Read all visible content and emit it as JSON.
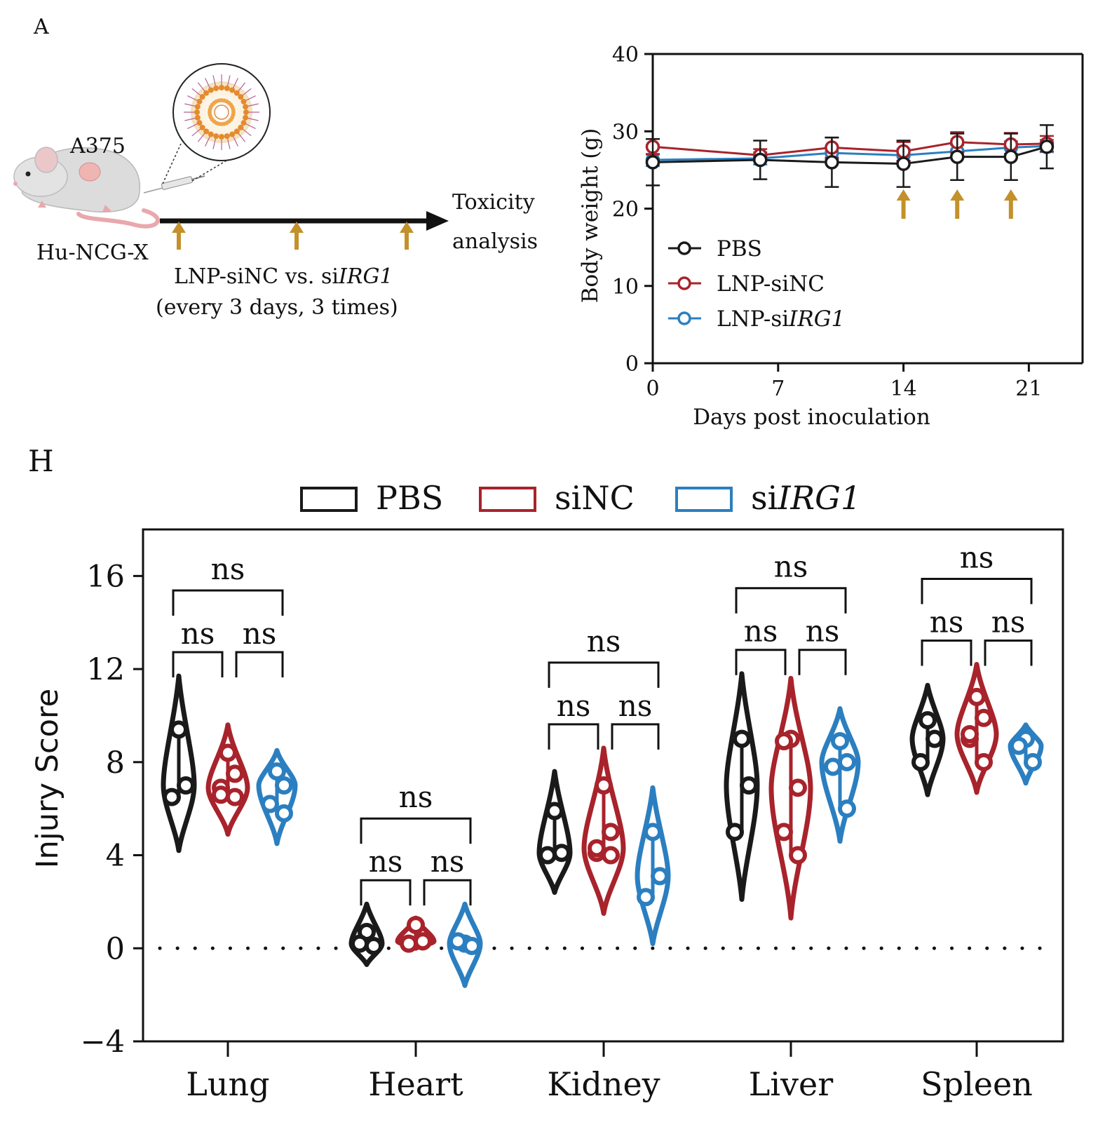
{
  "panel_a": {
    "label": "A",
    "tumor_label": "A375",
    "mouse_label": "Hu-NCG-X",
    "endpoint_line1": "Toxicity",
    "endpoint_line2": "analysis",
    "treatment_prefix": "LNP-siNC vs. si",
    "treatment_gene": "IRG1",
    "treatment_schedule": "(every 3 days, 3 times)"
  },
  "panel_h": {
    "label": "H"
  },
  "colors": {
    "pbs": "#1a1a1a",
    "sinc": "#a8232b",
    "sirg1": "#2b7fc0",
    "arrow": "#c3912a"
  },
  "chart_data": [
    {
      "type": "line",
      "title": "",
      "xlabel": "Days post inoculation",
      "ylabel": "Body weight (g)",
      "xlim": [
        0,
        24
      ],
      "ylim": [
        0,
        40
      ],
      "xticks": [
        0,
        7,
        14,
        21
      ],
      "xtick_labels": [
        "0",
        "7",
        "14",
        "21"
      ],
      "yticks": [
        0,
        10,
        20,
        30,
        40
      ],
      "ytick_labels": [
        "0",
        "10",
        "20",
        "30",
        "40"
      ],
      "x": [
        0,
        6,
        10,
        14,
        17,
        20,
        22
      ],
      "treatment_days": [
        14,
        17,
        20
      ],
      "legend_position": "lower-left",
      "series": [
        {
          "key": "pbs",
          "name": "PBS",
          "name_italic": "",
          "values": [
            26,
            26.3,
            26,
            25.8,
            26.7,
            26.7,
            28
          ],
          "errors": [
            3,
            2.5,
            3.2,
            3,
            3,
            3,
            2.8
          ]
        },
        {
          "key": "sinc",
          "name": "LNP-siNC",
          "name_italic": "",
          "values": [
            28,
            26.9,
            27.9,
            27.4,
            28.6,
            28.3,
            28.4
          ],
          "errors": [
            1,
            0.8,
            1.3,
            1.2,
            1.3,
            1.5,
            1
          ]
        },
        {
          "key": "sirg1",
          "name": "LNP-si",
          "name_italic": "IRG1",
          "values": [
            26.3,
            26.5,
            27.2,
            26.9,
            27.4,
            27.9,
            28.1
          ],
          "errors": [
            0.8,
            0.8,
            0.8,
            0.8,
            0.8,
            0.8,
            0.8
          ]
        }
      ]
    },
    {
      "type": "violin",
      "title": "",
      "xlabel": "",
      "ylabel": "Injury Score",
      "ylim": [
        -4,
        18
      ],
      "yticks": [
        -4,
        0,
        4,
        8,
        12,
        16
      ],
      "ytick_labels": [
        "−4",
        "0",
        "4",
        "8",
        "12",
        "16"
      ],
      "reference_line": 0,
      "legend_position": "top",
      "categories": [
        "Lung",
        "Heart",
        "Kidney",
        "Liver",
        "Spleen"
      ],
      "series": [
        {
          "key": "pbs",
          "name": "PBS",
          "name_italic": ""
        },
        {
          "key": "sinc",
          "name": "siNC",
          "name_italic": ""
        },
        {
          "key": "sirg1",
          "name": "si",
          "name_italic": "IRG1"
        }
      ],
      "groups": [
        [
          {
            "points": [
              9.4,
              7,
              6.5
            ],
            "range": [
              4.2,
              11.7
            ]
          },
          {
            "points": [
              8.4,
              7.5,
              6.9,
              6.5,
              6.6
            ],
            "range": [
              4.9,
              9.6
            ]
          },
          {
            "points": [
              7.6,
              7,
              6.2,
              5.8
            ],
            "range": [
              4.5,
              8.5
            ]
          }
        ],
        [
          {
            "points": [
              0.7,
              0.1,
              0.2
            ],
            "range": [
              -0.7,
              1.9
            ]
          },
          {
            "points": [
              1,
              0.3,
              0.2,
              0.3
            ],
            "range": [
              0,
              1.3
            ]
          },
          {
            "points": [
              0.2,
              0.1,
              0.3
            ],
            "range": [
              -1.6,
              1.9
            ]
          }
        ],
        [
          {
            "points": [
              5.9,
              4.1,
              4
            ],
            "range": [
              2.4,
              7.6
            ]
          },
          {
            "points": [
              7,
              5,
              4.1,
              4,
              4.3
            ],
            "range": [
              1.5,
              8.6
            ]
          },
          {
            "points": [
              5,
              3.1,
              2.2
            ],
            "range": [
              0.2,
              6.9
            ]
          }
        ],
        [
          {
            "points": [
              9,
              7,
              5
            ],
            "range": [
              2.1,
              11.8
            ]
          },
          {
            "points": [
              9,
              6.9,
              5,
              4,
              8.9
            ],
            "range": [
              1.3,
              11.6
            ]
          },
          {
            "points": [
              8.9,
              8,
              7.8,
              6
            ],
            "range": [
              4.6,
              10.3
            ]
          }
        ],
        [
          {
            "points": [
              9.8,
              9,
              8
            ],
            "range": [
              6.6,
              11.3
            ]
          },
          {
            "points": [
              10.8,
              9.9,
              9,
              8,
              9.2
            ],
            "range": [
              6.7,
              12.2
            ]
          },
          {
            "points": [
              9,
              8,
              8.7
            ],
            "range": [
              7.1,
              9.6
            ]
          }
        ]
      ],
      "comparison_label": "ns"
    }
  ]
}
